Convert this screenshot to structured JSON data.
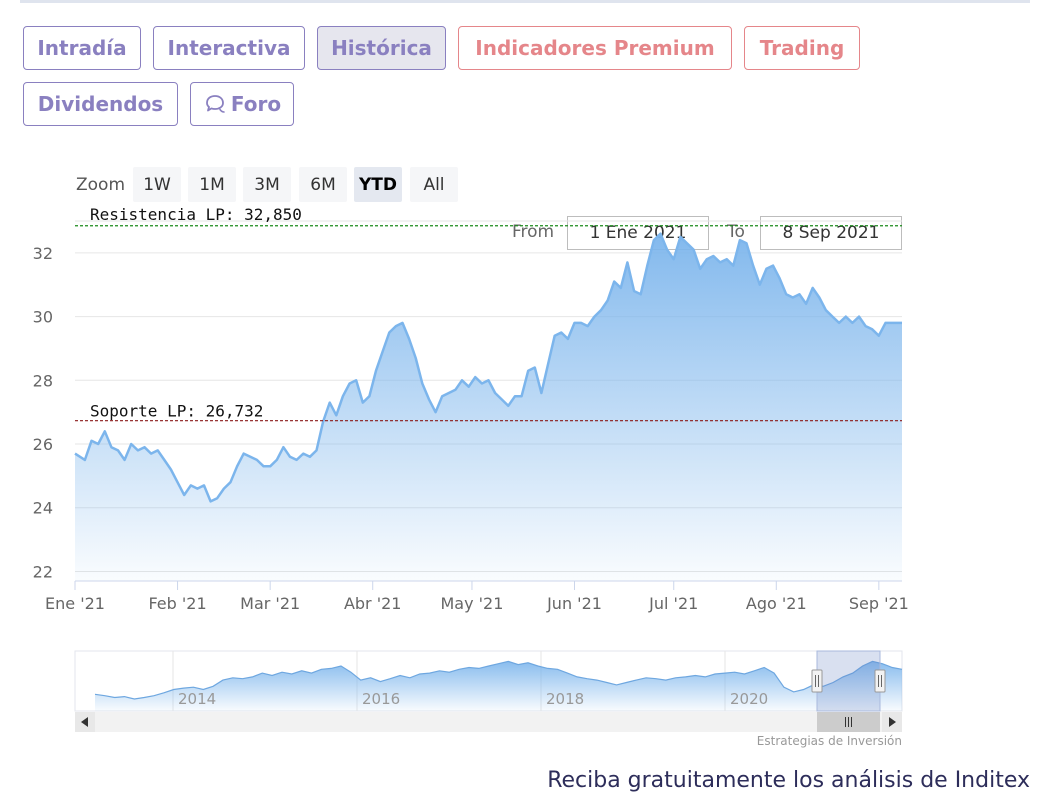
{
  "tabs": [
    {
      "label": "Intradía",
      "active": false,
      "premium": false
    },
    {
      "label": "Interactiva",
      "active": false,
      "premium": false
    },
    {
      "label": "Histórica",
      "active": true,
      "premium": false
    },
    {
      "label": "Indicadores Premium",
      "active": false,
      "premium": true
    },
    {
      "label": "Trading",
      "active": false,
      "premium": true
    },
    {
      "label": "Dividendos",
      "active": false,
      "premium": false
    },
    {
      "label": "Foro",
      "active": false,
      "premium": false,
      "icon": "chat-bubble-icon"
    }
  ],
  "range_selector": {
    "label": "Zoom",
    "buttons": [
      "1W",
      "1M",
      "3M",
      "6M",
      "YTD",
      "All"
    ],
    "active": "YTD",
    "from_label": "From",
    "from_value": "1 Ene 2021",
    "to_label": "To",
    "to_value": "8 Sep 2021"
  },
  "chart_data": {
    "type": "area",
    "x_tick_labels": [
      "Ene '21",
      "Feb '21",
      "Mar '21",
      "Abr '21",
      "May '21",
      "Jun '21",
      "Jul '21",
      "Ago '21",
      "Sep '21"
    ],
    "x_range_days": [
      0,
      250
    ],
    "y_ticks": [
      22,
      24,
      26,
      28,
      30,
      32
    ],
    "ylim": [
      21.7,
      33.0
    ],
    "grid": true,
    "series": [
      {
        "color": "#7cb5ec",
        "points": [
          [
            0,
            25.7
          ],
          [
            3,
            25.5
          ],
          [
            5,
            26.1
          ],
          [
            7,
            26.0
          ],
          [
            9,
            26.4
          ],
          [
            11,
            25.9
          ],
          [
            13,
            25.8
          ],
          [
            15,
            25.5
          ],
          [
            17,
            26.0
          ],
          [
            19,
            25.8
          ],
          [
            21,
            25.9
          ],
          [
            23,
            25.7
          ],
          [
            25,
            25.8
          ],
          [
            27,
            25.5
          ],
          [
            29,
            25.2
          ],
          [
            31,
            24.8
          ],
          [
            33,
            24.4
          ],
          [
            35,
            24.7
          ],
          [
            37,
            24.6
          ],
          [
            39,
            24.7
          ],
          [
            41,
            24.2
          ],
          [
            43,
            24.3
          ],
          [
            45,
            24.6
          ],
          [
            47,
            24.8
          ],
          [
            49,
            25.3
          ],
          [
            51,
            25.7
          ],
          [
            53,
            25.6
          ],
          [
            55,
            25.5
          ],
          [
            57,
            25.3
          ],
          [
            59,
            25.3
          ],
          [
            61,
            25.5
          ],
          [
            63,
            25.9
          ],
          [
            65,
            25.6
          ],
          [
            67,
            25.5
          ],
          [
            69,
            25.7
          ],
          [
            71,
            25.6
          ],
          [
            73,
            25.8
          ],
          [
            75,
            26.7
          ],
          [
            77,
            27.3
          ],
          [
            79,
            26.9
          ],
          [
            81,
            27.5
          ],
          [
            83,
            27.9
          ],
          [
            85,
            28.0
          ],
          [
            87,
            27.3
          ],
          [
            89,
            27.5
          ],
          [
            91,
            28.3
          ],
          [
            93,
            28.9
          ],
          [
            95,
            29.5
          ],
          [
            97,
            29.7
          ],
          [
            99,
            29.8
          ],
          [
            101,
            29.3
          ],
          [
            103,
            28.7
          ],
          [
            105,
            27.9
          ],
          [
            107,
            27.4
          ],
          [
            109,
            27.0
          ],
          [
            111,
            27.5
          ],
          [
            113,
            27.6
          ],
          [
            115,
            27.7
          ],
          [
            117,
            28.0
          ],
          [
            119,
            27.8
          ],
          [
            121,
            28.1
          ],
          [
            123,
            27.9
          ],
          [
            125,
            28.0
          ],
          [
            127,
            27.6
          ],
          [
            129,
            27.4
          ],
          [
            131,
            27.2
          ],
          [
            133,
            27.5
          ],
          [
            135,
            27.5
          ],
          [
            137,
            28.3
          ],
          [
            139,
            28.4
          ],
          [
            141,
            27.6
          ],
          [
            143,
            28.5
          ],
          [
            145,
            29.4
          ],
          [
            147,
            29.5
          ],
          [
            149,
            29.3
          ],
          [
            151,
            29.8
          ],
          [
            153,
            29.8
          ],
          [
            155,
            29.7
          ],
          [
            157,
            30.0
          ],
          [
            159,
            30.2
          ],
          [
            161,
            30.5
          ],
          [
            163,
            31.1
          ],
          [
            165,
            30.9
          ],
          [
            167,
            31.7
          ],
          [
            169,
            30.8
          ],
          [
            171,
            30.7
          ],
          [
            173,
            31.6
          ],
          [
            175,
            32.4
          ],
          [
            177,
            32.6
          ],
          [
            179,
            32.1
          ],
          [
            181,
            31.8
          ],
          [
            183,
            32.5
          ],
          [
            185,
            32.3
          ],
          [
            187,
            32.1
          ],
          [
            189,
            31.5
          ],
          [
            191,
            31.8
          ],
          [
            193,
            31.9
          ],
          [
            195,
            31.7
          ],
          [
            197,
            31.8
          ],
          [
            199,
            31.6
          ],
          [
            201,
            32.4
          ],
          [
            203,
            32.3
          ],
          [
            205,
            31.6
          ],
          [
            207,
            31.0
          ],
          [
            209,
            31.5
          ],
          [
            211,
            31.6
          ],
          [
            213,
            31.2
          ],
          [
            215,
            30.7
          ],
          [
            217,
            30.6
          ],
          [
            219,
            30.7
          ],
          [
            221,
            30.4
          ],
          [
            223,
            30.9
          ],
          [
            225,
            30.6
          ],
          [
            227,
            30.2
          ],
          [
            229,
            30.0
          ],
          [
            231,
            29.8
          ],
          [
            233,
            30.0
          ],
          [
            235,
            29.8
          ],
          [
            237,
            30.0
          ],
          [
            239,
            29.7
          ],
          [
            241,
            29.6
          ],
          [
            243,
            29.4
          ],
          [
            245,
            29.8
          ],
          [
            250,
            29.8
          ]
        ]
      }
    ],
    "annotations": [
      {
        "label": "Resistencia LP: 32,850",
        "value": 32.85,
        "color": "#1a8a1a"
      },
      {
        "label": "Soporte LP: 26,732",
        "value": 26.732,
        "color": "#8b1a1a"
      }
    ]
  },
  "navigator": {
    "year_labels": [
      "2014",
      "2016",
      "2018",
      "2020"
    ]
  },
  "credit": "Estrategias de Inversión",
  "cta": "Reciba gratuitamente los análisis de Inditex"
}
